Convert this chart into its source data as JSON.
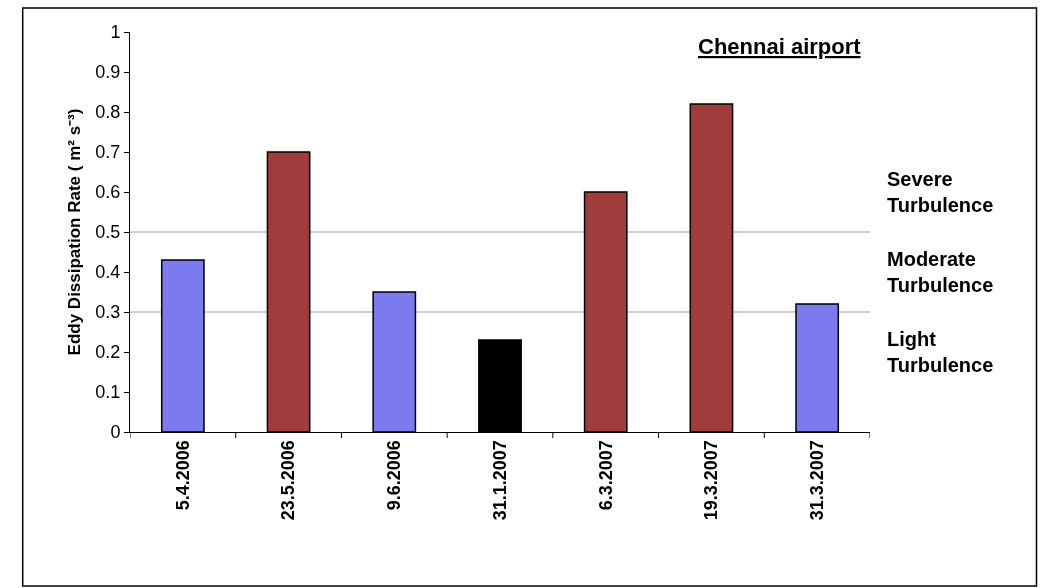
{
  "chart_data": {
    "type": "bar",
    "title": "Chennai airport",
    "ylabel": "Eddy Dissipation Rate ( m² s⁻³)",
    "categories": [
      "5.4.2006",
      "23.5.2006",
      "9.6.2006",
      "31.1.2007",
      "6.3.2007",
      "19.3.2007",
      "31.3.2007"
    ],
    "values": [
      0.43,
      0.7,
      0.35,
      0.23,
      0.6,
      0.82,
      0.32
    ],
    "colors": [
      "#7b7bef",
      "#a03c3c",
      "#7b7bef",
      "#000000",
      "#a03c3c",
      "#a03c3c",
      "#7b7bef"
    ],
    "ylim": [
      0,
      1
    ],
    "yticks": [
      0,
      0.1,
      0.2,
      0.3,
      0.4,
      0.5,
      0.6,
      0.7,
      0.8,
      0.9,
      1
    ],
    "grid": false,
    "ref_lines": [
      {
        "axis": "y",
        "value": 0.5,
        "color": "#c0c0c0"
      },
      {
        "axis": "y",
        "value": 0.3,
        "color": "#c0c0c0"
      }
    ],
    "annotations": [
      "Severe Turbulence",
      "Moderate Turbulence",
      "Light Turbulence"
    ]
  }
}
